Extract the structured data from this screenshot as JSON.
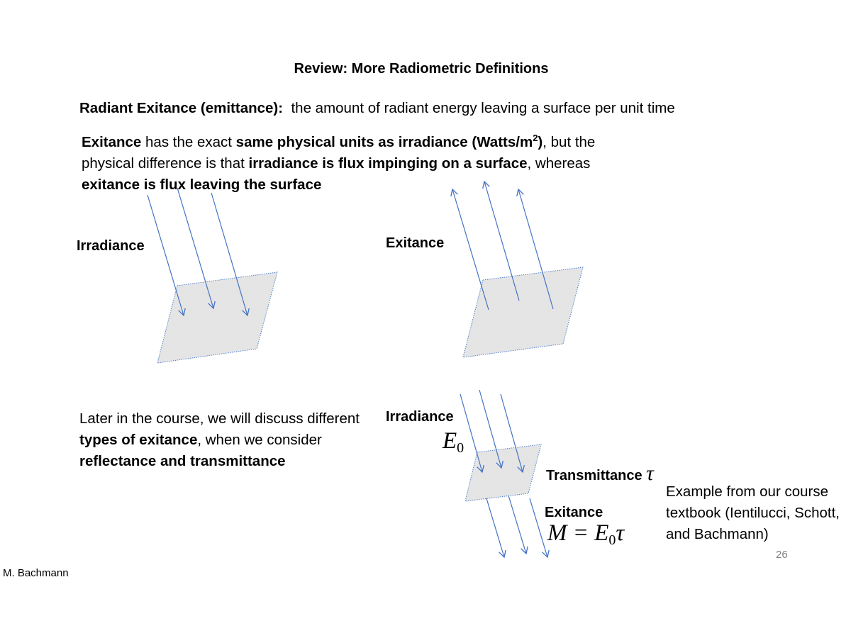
{
  "slide": {
    "title": "Review: More Radiometric Definitions",
    "definition": {
      "term": "Radiant Exitance (emittance):",
      "text": "  the amount of radiant energy leaving a surface per unit time"
    },
    "explanation": {
      "p1_bold": "Exitance",
      "p2": " has the exact ",
      "p3_bold": "same physical units as irradiance (Watts/m",
      "p3_sup": "2",
      "p3_close": ")",
      "p4": ", but the physical difference  is that ",
      "p5_bold": "irradiance is flux impinging on a surface",
      "p6": ", whereas ",
      "p7_bold": "exitance is flux leaving the surface"
    },
    "labels": {
      "irradiance_top": "Irradiance",
      "exitance_top": "Exitance",
      "irradiance_bottom": "Irradiance",
      "transmittance": "Transmittance",
      "exitance_bottom": "Exitance"
    },
    "later": {
      "l1": "Later in the course, we will discuss different ",
      "l2_bold": "types of exitance",
      "l3": ", when we consider ",
      "l4_bold": "reflectance and transmittance"
    },
    "math": {
      "e0_symbol": "E",
      "e0_sub": "0",
      "tau": "τ",
      "m_lhs": "M = E",
      "m_sub": "0",
      "m_tau": "τ"
    },
    "example": "Example from our course textbook (Ientilucci, Schott, and Bachmann)",
    "page_number": "26",
    "author": "M. Bachmann"
  },
  "colors": {
    "arrow": "#4472c4",
    "surface_fill": "#e4e4e4",
    "page_number": "#808080"
  }
}
